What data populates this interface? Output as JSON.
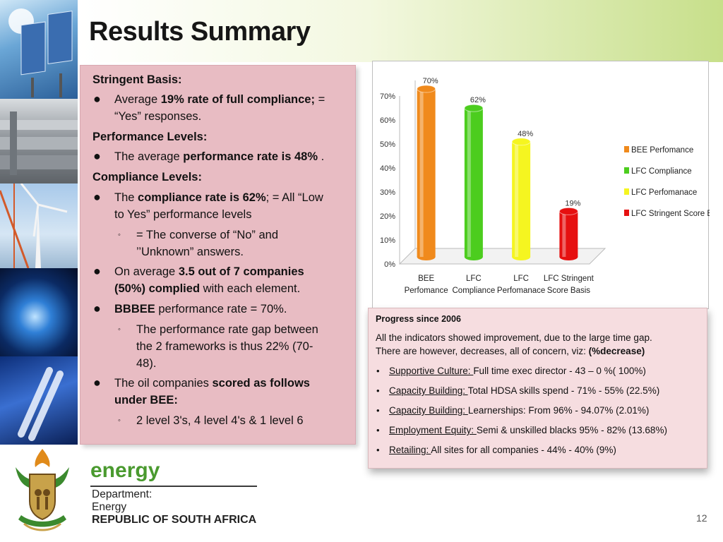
{
  "slide": {
    "title": "Results Summary",
    "page_number": "12"
  },
  "left_panel": {
    "stringent_heading": "Stringent Basis:",
    "b1": {
      "pre": "Average ",
      "bold": "19% rate of full compliance;",
      "post": " ="
    },
    "b1_cont": "“Yes” responses.",
    "performance_heading": "Performance Levels:",
    "b2": {
      "pre": "The average ",
      "bold": "performance rate is 48%",
      "post": " ."
    },
    "compliance_heading": "Compliance Levels:",
    "b3": {
      "pre": "The ",
      "bold": "compliance rate is 62%",
      "post": "; = All “Low"
    },
    "b3_cont": "to Yes” performance levels",
    "s1": "= The converse of “No” and",
    "s1_cont": "’’Unknown” answers.",
    "b4": {
      "pre": "On average ",
      "bold": "3.5 out of 7 companies"
    },
    "b4_cont": {
      "bold": "(50%) complied",
      "post": " with each element."
    },
    "b5": {
      "bold": "BBBEE",
      "post": " performance rate = 70%."
    },
    "s2": "The performance rate gap between",
    "s2_cont1": "the 2 frameworks is thus 22%  (70-",
    "s2_cont2": "48).",
    "b6": {
      "pre": "The oil companies ",
      "bold": "scored as follows"
    },
    "b6_cont": {
      "bold": "under BEE:"
    },
    "s3": " 2 level 3's, 4 level 4's & 1 level 6"
  },
  "chart_data": {
    "type": "bar",
    "categories": [
      "BEE Perfomance",
      "LFC Compliance",
      "LFC Perfomanace",
      "LFC Stringent Score Basis"
    ],
    "category_labels": [
      [
        "BEE",
        "Perfomance"
      ],
      [
        "LFC",
        "Compliance"
      ],
      [
        "LFC",
        "Perfomanace"
      ],
      [
        "LFC Stringent",
        "Score Basis"
      ]
    ],
    "values": [
      70,
      62,
      48,
      19
    ],
    "value_labels": [
      "70%",
      "62%",
      "48%",
      "19%"
    ],
    "legend": [
      "BEE Perfomance",
      "LFC Compliance",
      "LFC Perfomanace",
      "LFC Stringent Score Basis"
    ],
    "colors": [
      "#f08a1c",
      "#4ccd1e",
      "#f5f520",
      "#e61010"
    ],
    "yticks": [
      "0%",
      "10%",
      "20%",
      "30%",
      "40%",
      "50%",
      "60%",
      "70%"
    ],
    "ylim": [
      0,
      70
    ],
    "legend_position": "right",
    "title": "",
    "xlabel": "",
    "ylabel": ""
  },
  "progress": {
    "title": "Progress since 2006",
    "intro1": "All the indicators showed improvement, due to the large time gap.",
    "intro2_pre": "There are however, decreases, all of concern, viz: ",
    "intro2_bold": "(%decrease)",
    "items": [
      {
        "u": "Supportive Culture: ",
        "rest": "Full time exec director - 43 – 0 %( 100%)"
      },
      {
        "u": "Capacity Building: ",
        "rest": "Total  HDSA skills spend - 71% - 55% (22.5%)"
      },
      {
        "u": "Capacity Building: ",
        "rest": "Learnerships: From 96% - 94.07% (2.01%)"
      },
      {
        "u": "Employment Equity: ",
        "rest": "Semi  & unskilled blacks 95% - 82% (13.68%)"
      },
      {
        "u": "Retailing: ",
        "rest": "All sites for all companies - 44% - 40% (9%)"
      }
    ]
  },
  "footer": {
    "brand": "energy",
    "dept1": "Department:",
    "dept2": "Energy",
    "dept3": "REPUBLIC OF SOUTH AFRICA"
  },
  "colors": {
    "left_panel_bg": "#e8bcc3",
    "progress_bg": "#f6dde0",
    "energy_green": "#4a9a2f"
  }
}
